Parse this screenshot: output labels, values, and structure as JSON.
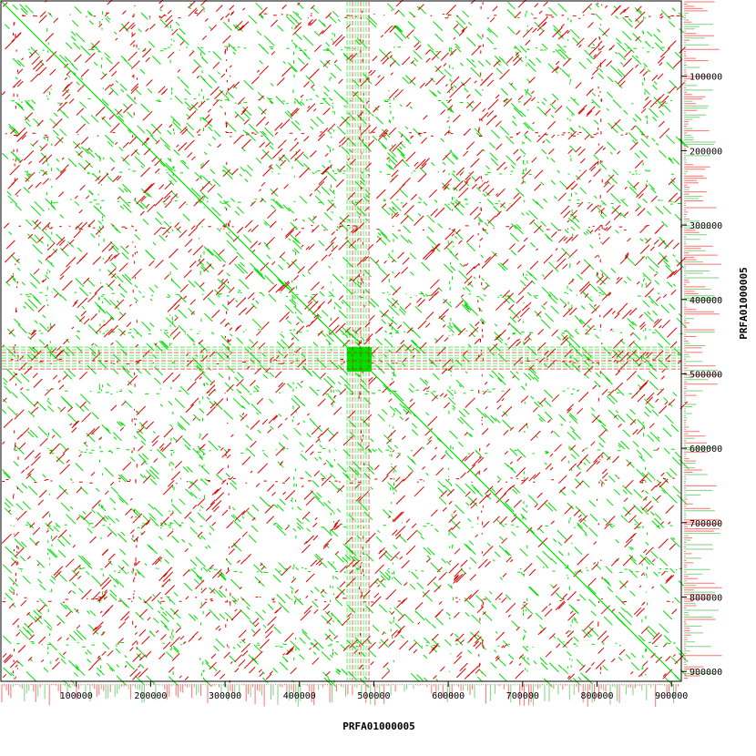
{
  "chart_data": {
    "type": "scatter",
    "subtype": "self-dotplot",
    "title": "",
    "xlabel": "PRFA01000005",
    "ylabel": "PRFA01000005",
    "xlim": [
      0,
      912000
    ],
    "ylim": [
      0,
      912000
    ],
    "y_inverted": true,
    "x_ticks": [
      "100000",
      "200000",
      "300000",
      "400000",
      "500000",
      "600000",
      "700000",
      "800000",
      "900000"
    ],
    "y_ticks": [
      "100000",
      "200000",
      "300000",
      "400000",
      "500000",
      "600000",
      "700000",
      "800000",
      "900000"
    ],
    "grid": false,
    "legend": "none",
    "series": [
      {
        "name": "",
        "color": "#00e000",
        "strand": "forward"
      },
      {
        "name": "",
        "color": "#e00000",
        "strand": "reverse"
      }
    ],
    "main_diagonal": [
      [
        0,
        0
      ],
      [
        912000,
        912000
      ]
    ],
    "dense_repeat_block": {
      "x": [
        464000,
        497000
      ],
      "y": [
        464000,
        497000
      ]
    },
    "repeat_stripes_at": [
      15000,
      60000,
      130000,
      175000,
      225000,
      265000,
      300000,
      390000,
      440000,
      480000,
      520000,
      600000,
      640000,
      700000,
      760000,
      800000,
      860000
    ],
    "coverage_histogram_colors": [
      "#ff7070",
      "#80d080"
    ]
  }
}
